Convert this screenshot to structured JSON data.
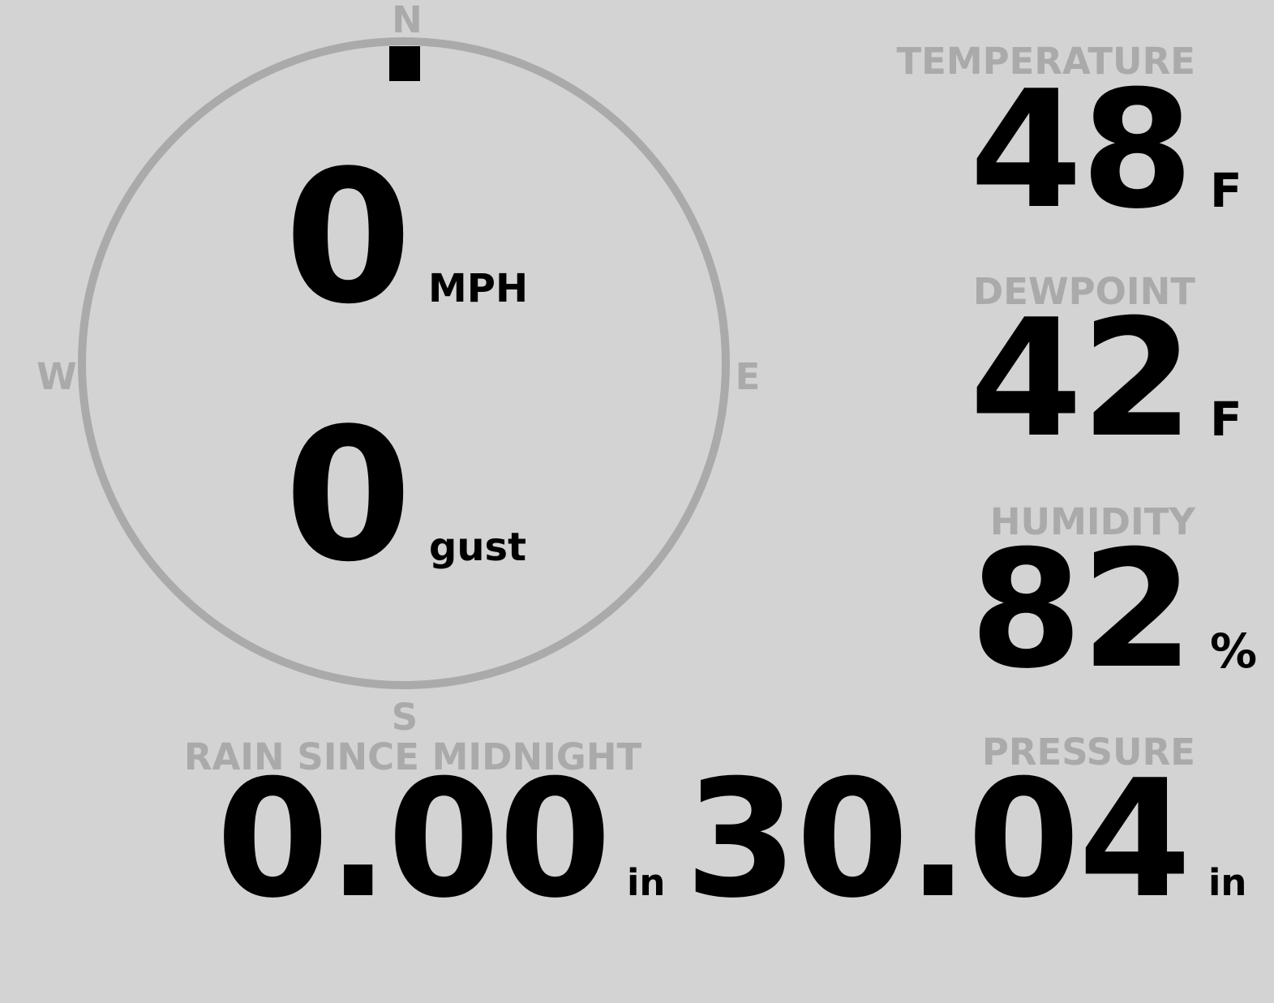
{
  "colors": {
    "background": "#d3d3d3",
    "label": "#aaaaaa",
    "value": "#000000",
    "compass_ring": "#aaaaaa"
  },
  "compass": {
    "north": "N",
    "east": "E",
    "south": "S",
    "west": "W",
    "wind_direction_deg": 0,
    "wind_speed": "0",
    "wind_speed_unit": "MPH",
    "gust": "0",
    "gust_unit": "gust"
  },
  "temperature": {
    "label": "TEMPERATURE",
    "value": "48",
    "unit": "F"
  },
  "dewpoint": {
    "label": "DEWPOINT",
    "value": "42",
    "unit": "F"
  },
  "humidity": {
    "label": "HUMIDITY",
    "value": "82",
    "unit": "%"
  },
  "pressure": {
    "label": "PRESSURE",
    "value": "30.04",
    "unit": "in"
  },
  "rain": {
    "label": "RAIN SINCE MIDNIGHT",
    "value": "0.00",
    "unit": "in"
  }
}
